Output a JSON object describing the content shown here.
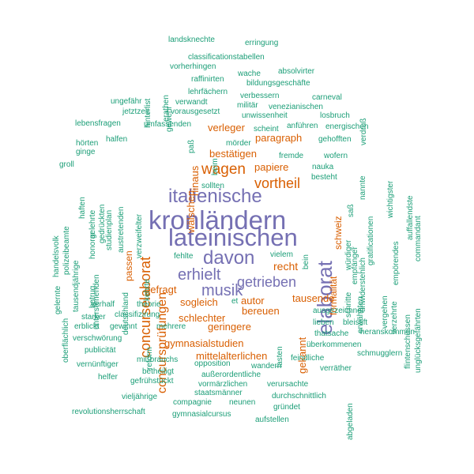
{
  "palette": {
    "tier1": "#7570b3",
    "tier2": "#d95f02",
    "tier3": "#1b9e77"
  },
  "words": [
    {
      "text": "kronländern",
      "tier": 1
    },
    {
      "text": "lateinischen",
      "tier": 1
    },
    {
      "text": "italienische",
      "tier": 1
    },
    {
      "text": "davon",
      "tier": 1
    },
    {
      "text": "erhielt",
      "tier": 1
    },
    {
      "text": "musik",
      "tier": 1
    },
    {
      "text": "getrieben",
      "tier": 1
    },
    {
      "text": "elaborat",
      "tier": 1
    },
    {
      "text": "concursprüfungen",
      "tier": 2
    },
    {
      "text": "concurselaborat",
      "tier": 2
    },
    {
      "text": "wagen",
      "tier": 2
    },
    {
      "text": "vortheil",
      "tier": 2
    },
    {
      "text": "papiere",
      "tier": 2
    },
    {
      "text": "bestätigen",
      "tier": 2
    },
    {
      "text": "paragraph",
      "tier": 2
    },
    {
      "text": "verleger",
      "tier": 2
    },
    {
      "text": "wälschen",
      "tier": 2
    },
    {
      "text": "hinaus",
      "tier": 2
    },
    {
      "text": "recht",
      "tier": 2
    },
    {
      "text": "gefragt",
      "tier": 2
    },
    {
      "text": "sogleich",
      "tier": 2
    },
    {
      "text": "autor",
      "tier": 2
    },
    {
      "text": "bereuen",
      "tier": 2
    },
    {
      "text": "tausende",
      "tier": 2
    },
    {
      "text": "schlechter",
      "tier": 2
    },
    {
      "text": "geringere",
      "tier": 2
    },
    {
      "text": "gymnasialstudien",
      "tier": 2
    },
    {
      "text": "mittelalterlichen",
      "tier": 2
    },
    {
      "text": "passen",
      "tier": 2
    },
    {
      "text": "schweiz",
      "tier": 2
    },
    {
      "text": "formalität",
      "tier": 2
    },
    {
      "text": "gekannt",
      "tier": 2
    },
    {
      "text": "landsknechte",
      "tier": 3
    },
    {
      "text": "erringung",
      "tier": 3
    },
    {
      "text": "classificationstabellen",
      "tier": 3
    },
    {
      "text": "vorherhingen",
      "tier": 3
    },
    {
      "text": "absolvirter",
      "tier": 3
    },
    {
      "text": "hinterlist",
      "tier": 3
    },
    {
      "text": "erathen",
      "tier": 3
    },
    {
      "text": "raffinirten",
      "tier": 3
    },
    {
      "text": "wache",
      "tier": 3
    },
    {
      "text": "bildungsgeschäfte",
      "tier": 3
    },
    {
      "text": "gewehr",
      "tier": 3
    },
    {
      "text": "lehrfächern",
      "tier": 3
    },
    {
      "text": "verbessern",
      "tier": 3
    },
    {
      "text": "carneval",
      "tier": 3
    },
    {
      "text": "verdruß",
      "tier": 3
    },
    {
      "text": "ungefähr",
      "tier": 3
    },
    {
      "text": "verwandt",
      "tier": 3
    },
    {
      "text": "militär",
      "tier": 3
    },
    {
      "text": "venezianischen",
      "tier": 3
    },
    {
      "text": "jetztzeit",
      "tier": 3
    },
    {
      "text": "vorausgesetzt",
      "tier": 3
    },
    {
      "text": "unwissenheit",
      "tier": 3
    },
    {
      "text": "losbruch",
      "tier": 3
    },
    {
      "text": "lebensfragen",
      "tier": 3
    },
    {
      "text": "umfassenden",
      "tier": 3
    },
    {
      "text": "scheint",
      "tier": 3
    },
    {
      "text": "anführen",
      "tier": 3
    },
    {
      "text": "energischen",
      "tier": 3
    },
    {
      "text": "halfen",
      "tier": 3
    },
    {
      "text": "paß",
      "tier": 3
    },
    {
      "text": "gehofften",
      "tier": 3
    },
    {
      "text": "hörten",
      "tier": 3
    },
    {
      "text": "mörder",
      "tier": 3
    },
    {
      "text": "ginge",
      "tier": 3
    },
    {
      "text": "beim",
      "tier": 3
    },
    {
      "text": "fremde",
      "tier": 3
    },
    {
      "text": "wofern",
      "tier": 3
    },
    {
      "text": "wichtigster",
      "tier": 3
    },
    {
      "text": "groll",
      "tier": 3
    },
    {
      "text": "studienplan",
      "tier": 3
    },
    {
      "text": "nauka",
      "tier": 3
    },
    {
      "text": "nannte",
      "tier": 3
    },
    {
      "text": "auffallendste",
      "tier": 3
    },
    {
      "text": "haften",
      "tier": 3
    },
    {
      "text": "austretenden",
      "tier": 3
    },
    {
      "text": "verzweifelter",
      "tier": 3
    },
    {
      "text": "besteht",
      "tier": 3
    },
    {
      "text": "commandant",
      "tier": 3
    },
    {
      "text": "handelsvolk",
      "tier": 3
    },
    {
      "text": "gedrückten",
      "tier": 3
    },
    {
      "text": "gelehrte",
      "tier": 3
    },
    {
      "text": "sollten",
      "tier": 3
    },
    {
      "text": "saß",
      "tier": 3
    },
    {
      "text": "gratificationen",
      "tier": 3
    },
    {
      "text": "polizeibeamte",
      "tier": 3
    },
    {
      "text": "honorar",
      "tier": 3
    },
    {
      "text": "empörendes",
      "tier": 3
    },
    {
      "text": "tausendjährige",
      "tier": 3
    },
    {
      "text": "würdiger",
      "tier": 3
    },
    {
      "text": "empfänger",
      "tier": 3
    },
    {
      "text": "unwiderstehlich",
      "tier": 3
    },
    {
      "text": "unterstehenden",
      "tier": 3
    },
    {
      "text": "kehrte",
      "tier": 3
    },
    {
      "text": "fehlte",
      "tier": 3
    },
    {
      "text": "vielem",
      "tier": 3
    },
    {
      "text": "bein",
      "tier": 3
    },
    {
      "text": "schritte",
      "tier": 3
    },
    {
      "text": "gelernte",
      "tier": 3
    },
    {
      "text": "betrug",
      "tier": 3
    },
    {
      "text": "deutschland",
      "tier": 3
    },
    {
      "text": "et",
      "tier": 3
    },
    {
      "text": "erwähnten",
      "tier": 3
    },
    {
      "text": "vergehen",
      "tier": 3
    },
    {
      "text": "verzehrte",
      "tier": 3
    },
    {
      "text": "flintenschüssen",
      "tier": 3
    },
    {
      "text": "unglücksgefährten",
      "tier": 3
    },
    {
      "text": "oberflächlich",
      "tier": 3
    },
    {
      "text": "verhalf",
      "tier": 3
    },
    {
      "text": "theorie",
      "tier": 3
    },
    {
      "text": "ausgezeichnet",
      "tier": 3
    },
    {
      "text": "starker",
      "tier": 3
    },
    {
      "text": "classifizirung",
      "tier": 3
    },
    {
      "text": "lieben",
      "tier": 3
    },
    {
      "text": "bleistift",
      "tier": 3
    },
    {
      "text": "erblickt",
      "tier": 3
    },
    {
      "text": "gewinnt",
      "tier": 3
    },
    {
      "text": "mehrere",
      "tier": 3
    },
    {
      "text": "heranskommen",
      "tier": 3
    },
    {
      "text": "verschwörung",
      "tier": 3
    },
    {
      "text": "reform",
      "tier": 3
    },
    {
      "text": "lasten",
      "tier": 3
    },
    {
      "text": "thatsache",
      "tier": 3
    },
    {
      "text": "überkommenen",
      "tier": 3
    },
    {
      "text": "publicität",
      "tier": 3
    },
    {
      "text": "schmugglern",
      "tier": 3
    },
    {
      "text": "mißbrauchs",
      "tier": 3
    },
    {
      "text": "feindliche",
      "tier": 3
    },
    {
      "text": "vernünftiger",
      "tier": 3
    },
    {
      "text": "opposition",
      "tier": 3
    },
    {
      "text": "wandern",
      "tier": 3
    },
    {
      "text": "verräther",
      "tier": 3
    },
    {
      "text": "betheiligt",
      "tier": 3
    },
    {
      "text": "helfer",
      "tier": 3
    },
    {
      "text": "außerordentliche",
      "tier": 3
    },
    {
      "text": "gefrühstückt",
      "tier": 3
    },
    {
      "text": "vormärzlichen",
      "tier": 3
    },
    {
      "text": "verursachte",
      "tier": 3
    },
    {
      "text": "abgeladen",
      "tier": 3
    },
    {
      "text": "staatsmänner",
      "tier": 3
    },
    {
      "text": "vieljährige",
      "tier": 3
    },
    {
      "text": "durchschnittlich",
      "tier": 3
    },
    {
      "text": "compagnie",
      "tier": 3
    },
    {
      "text": "neunen",
      "tier": 3
    },
    {
      "text": "revolutionsherrschaft",
      "tier": 3
    },
    {
      "text": "gründet",
      "tier": 3
    },
    {
      "text": "gymnasialcursus",
      "tier": 3
    },
    {
      "text": "aufstellen",
      "tier": 3
    }
  ]
}
